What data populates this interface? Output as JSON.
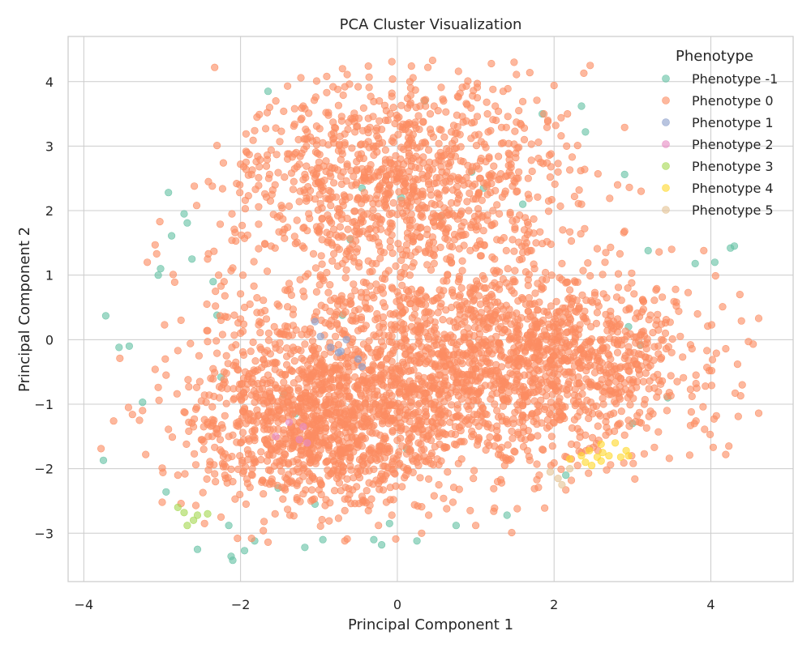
{
  "chart_data": {
    "type": "scatter",
    "title": "PCA Cluster Visualization",
    "xlabel": "Principal Component 1",
    "ylabel": "Principal Component 2",
    "xlim": [
      -4.2,
      5.05
    ],
    "ylim": [
      -3.75,
      4.7
    ],
    "xticks": [
      -4,
      -2,
      0,
      2,
      4
    ],
    "yticks": [
      -3,
      -2,
      -1,
      0,
      1,
      2,
      3,
      4
    ],
    "xtick_labels": [
      "−4",
      "−2",
      "0",
      "2",
      "4"
    ],
    "ytick_labels": [
      "−3",
      "−2",
      "−1",
      "0",
      "1",
      "2",
      "3",
      "4"
    ],
    "grid": true,
    "legend": {
      "title": "Phenotype",
      "position": "top-right"
    },
    "series": [
      {
        "name": "Phenotype -1",
        "color": "#66c2a5",
        "points": [
          [
            -3.75,
            -1.87
          ],
          [
            -3.72,
            0.37
          ],
          [
            -3.55,
            -0.12
          ],
          [
            -3.42,
            -0.1
          ],
          [
            -3.25,
            -0.97
          ],
          [
            -3.05,
            1.0
          ],
          [
            -3.02,
            1.1
          ],
          [
            -2.95,
            -2.36
          ],
          [
            -2.92,
            2.28
          ],
          [
            -2.88,
            1.61
          ],
          [
            -2.72,
            1.95
          ],
          [
            -2.68,
            1.81
          ],
          [
            -2.62,
            1.25
          ],
          [
            -2.55,
            -3.25
          ],
          [
            -2.35,
            0.9
          ],
          [
            -2.3,
            0.38
          ],
          [
            -2.25,
            -0.58
          ],
          [
            -2.15,
            -2.88
          ],
          [
            -2.12,
            -3.36
          ],
          [
            -2.1,
            -3.42
          ],
          [
            -1.95,
            -3.27
          ],
          [
            -1.82,
            -3.12
          ],
          [
            -1.65,
            3.85
          ],
          [
            -1.52,
            -2.3
          ],
          [
            -1.45,
            -0.85
          ],
          [
            -1.3,
            -1.15
          ],
          [
            -1.18,
            -3.22
          ],
          [
            -1.05,
            -2.55
          ],
          [
            -0.95,
            -3.1
          ],
          [
            -0.7,
            0.38
          ],
          [
            -0.6,
            1.55
          ],
          [
            -0.45,
            2.35
          ],
          [
            -0.3,
            -3.1
          ],
          [
            -0.2,
            -3.18
          ],
          [
            -0.1,
            -2.85
          ],
          [
            0.05,
            2.2
          ],
          [
            0.12,
            -1.7
          ],
          [
            0.25,
            -3.12
          ],
          [
            0.35,
            3.7
          ],
          [
            0.55,
            1.9
          ],
          [
            0.75,
            -2.88
          ],
          [
            0.95,
            2.6
          ],
          [
            1.1,
            2.35
          ],
          [
            1.4,
            -2.72
          ],
          [
            1.6,
            2.1
          ],
          [
            1.85,
            3.5
          ],
          [
            2.15,
            -2.1
          ],
          [
            2.35,
            3.62
          ],
          [
            2.4,
            3.22
          ],
          [
            2.9,
            2.56
          ],
          [
            2.95,
            0.2
          ],
          [
            3.0,
            -1.3
          ],
          [
            3.1,
            -0.08
          ],
          [
            3.2,
            1.38
          ],
          [
            3.45,
            -0.9
          ],
          [
            3.8,
            1.18
          ],
          [
            4.05,
            1.2
          ],
          [
            4.25,
            1.42
          ],
          [
            4.3,
            1.45
          ]
        ]
      },
      {
        "name": "Phenotype 0",
        "color": "#fc8d62",
        "points": []
      },
      {
        "name": "Phenotype 1",
        "color": "#8da0cb",
        "points": [
          [
            -1.05,
            0.28
          ],
          [
            -0.98,
            0.05
          ],
          [
            -0.85,
            -0.12
          ],
          [
            -0.75,
            -0.2
          ],
          [
            -0.72,
            -0.18
          ],
          [
            -0.65,
            0.0
          ],
          [
            -0.5,
            -0.3
          ],
          [
            -0.45,
            -0.42
          ]
        ]
      },
      {
        "name": "Phenotype 2",
        "color": "#e78ac3",
        "points": [
          [
            -1.55,
            -1.5
          ],
          [
            -1.38,
            -1.28
          ],
          [
            -1.25,
            -1.55
          ],
          [
            -1.2,
            -1.35
          ],
          [
            -1.15,
            -1.6
          ]
        ]
      },
      {
        "name": "Phenotype 3",
        "color": "#a6d854",
        "points": [
          [
            -2.8,
            -2.6
          ],
          [
            -2.72,
            -2.68
          ],
          [
            -2.68,
            -2.88
          ],
          [
            -2.6,
            -2.8
          ],
          [
            -2.55,
            -2.72
          ],
          [
            -2.42,
            -2.7
          ]
        ]
      },
      {
        "name": "Phenotype 4",
        "color": "#ffd92f",
        "points": [
          [
            2.2,
            -1.85
          ],
          [
            2.35,
            -1.8
          ],
          [
            2.45,
            -1.72
          ],
          [
            2.48,
            -1.95
          ],
          [
            2.55,
            -1.82
          ],
          [
            2.6,
            -1.88
          ],
          [
            2.62,
            -1.75
          ],
          [
            2.7,
            -1.8
          ],
          [
            2.78,
            -1.6
          ],
          [
            2.85,
            -1.82
          ],
          [
            2.92,
            -1.72
          ],
          [
            2.95,
            -1.8
          ],
          [
            2.6,
            -1.62
          ],
          [
            2.4,
            -1.9
          ]
        ]
      },
      {
        "name": "Phenotype 5",
        "color": "#e5c494",
        "points": [
          [
            1.95,
            -2.05
          ],
          [
            2.05,
            -2.15
          ],
          [
            2.1,
            -2.25
          ],
          [
            2.2,
            -2.0
          ]
        ]
      }
    ]
  }
}
